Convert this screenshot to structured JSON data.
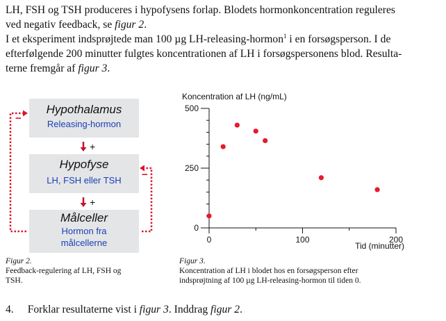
{
  "intro": {
    "line1": "LH, FSH og TSH produceres i hypofysens forlap. Blodets hormonkoncentration reguleres",
    "line2a": "ved negativ feedback, se ",
    "line2_ref": "figur 2",
    "line2b": ".",
    "line3a": "I et eksperiment indsprøjtede man 100 µg LH-releasing-hormon",
    "line3_sup": "1",
    "line3b": " i en forsøgsperson. I de",
    "line4": "efterfølgende 200 minutter fulgtes koncentrationen af LH i forsøgspersonens blod. Resulta-",
    "line5a": "terne fremgår af ",
    "line5_ref": "figur 3",
    "line5b": "."
  },
  "diagram": {
    "box1_title": "Hypothalamus",
    "box1_sub": "Releasing-hormon",
    "box2_title": "Hypofyse",
    "box2_sub": "LH, FSH eller TSH",
    "box3_title": "Målceller",
    "box3_sub_line1": "Hormon fra",
    "box3_sub_line2": "målcellerne",
    "plus": "+",
    "minus": "−",
    "colors": {
      "box": "#e4e5e7",
      "feedback": "#d8172b",
      "subtext": "#1a3fb5"
    }
  },
  "caption2": {
    "label": "Figur 2.",
    "line1": "Feedback-regulering af LH, FSH og",
    "line2": "TSH."
  },
  "caption3": {
    "label": "Figur 3.",
    "line1": "Koncentration af LH i blodet hos en forsøgsperson efter",
    "line2": "indsprøjtning af 100 µg LH-releasing-hormon til tiden 0."
  },
  "chart_data": {
    "type": "scatter",
    "title": "Koncentration af LH (ng/mL)",
    "ylabel": "Koncentration af LH (ng/mL)",
    "xlabel": "Tid (minutter)",
    "xlim": [
      0,
      200
    ],
    "ylim": [
      0,
      500
    ],
    "x_ticks": [
      0,
      100,
      200
    ],
    "y_ticks": [
      0,
      250,
      500
    ],
    "point_color": "#e8192c",
    "series": [
      {
        "name": "LH",
        "points": [
          {
            "x": 0,
            "y": 50
          },
          {
            "x": 15,
            "y": 340
          },
          {
            "x": 30,
            "y": 430
          },
          {
            "x": 50,
            "y": 405
          },
          {
            "x": 60,
            "y": 365
          },
          {
            "x": 120,
            "y": 210
          },
          {
            "x": 180,
            "y": 160
          }
        ]
      }
    ]
  },
  "question": {
    "number": "4.",
    "text_a": "Forklar resultaterne vist i ",
    "ref1": "figur 3",
    "text_b": ". Inddrag ",
    "ref2": "figur 2",
    "text_c": "."
  }
}
